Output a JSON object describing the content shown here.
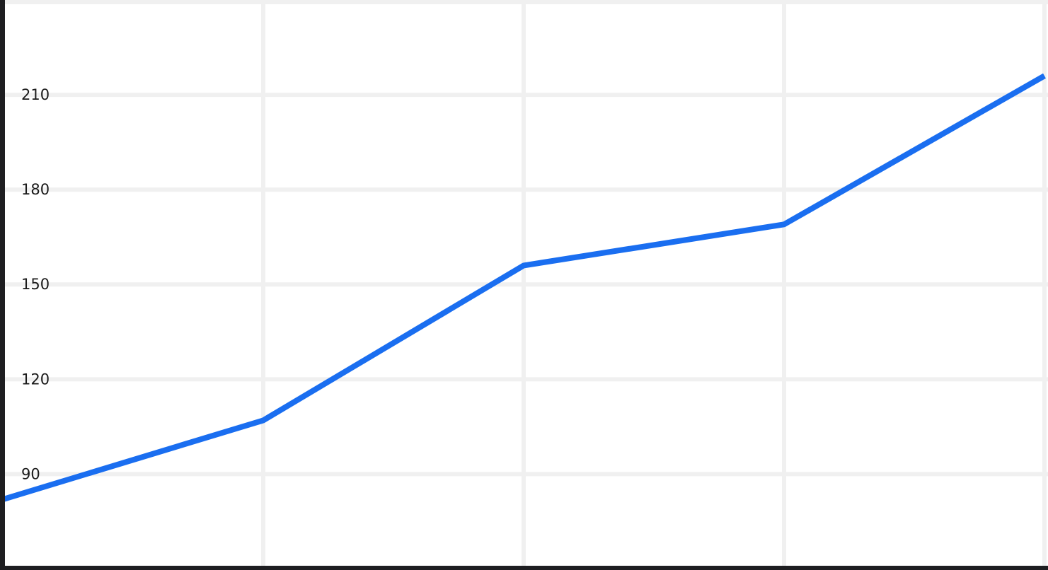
{
  "chart_data": {
    "type": "line",
    "title": "",
    "xlabel": "",
    "ylabel": "",
    "x": [
      0,
      1,
      2,
      3,
      4
    ],
    "series": [
      {
        "values": [
          82,
          107,
          156,
          169,
          216
        ],
        "color": "#1a6ef0"
      }
    ],
    "yticks": [
      "90",
      "120",
      "150",
      "180",
      "210"
    ],
    "ylim": [
      61,
      240
    ],
    "grid": true,
    "legend": "none",
    "colors": {
      "background": "#ffffff",
      "grid": "#f0f0f0",
      "frame": "#1e1e21",
      "line": "#1a6ef0",
      "tick_text": "#1a1a1a"
    }
  }
}
